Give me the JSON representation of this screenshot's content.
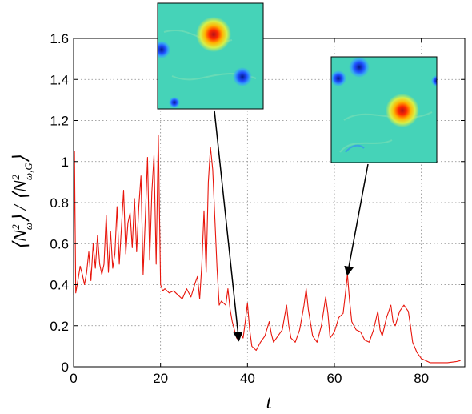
{
  "chart_data": {
    "type": "line",
    "title": "",
    "xlabel": "t",
    "ylabel": "⟨N²_ω⟩ / ⟨N²_ω,G⟩",
    "ylabel_parts": {
      "open": "⟨",
      "n1": "N",
      "sup1": "2",
      "sub1": "ω",
      "close1": "⟩",
      "slash": " / ",
      "open2": "⟨",
      "n2": "N",
      "sup2": "2",
      "sub2": "ω,G",
      "close2": "⟩"
    },
    "xlim": [
      0,
      90
    ],
    "ylim": [
      0,
      1.6
    ],
    "x_ticks": [
      0,
      20,
      40,
      60,
      80
    ],
    "y_ticks": [
      0,
      0.2,
      0.4,
      0.6,
      0.8,
      1,
      1.2,
      1.4,
      1.6
    ],
    "y_tick_labels": [
      "0",
      "0.2",
      "0.4",
      "0.6",
      "0.8",
      "1",
      "1.2",
      "1.4",
      "1.6"
    ],
    "grid": true,
    "series": [
      {
        "color": "#e8160c",
        "points": [
          [
            0.0,
            0.35
          ],
          [
            0.2,
            1.05
          ],
          [
            0.5,
            0.36
          ],
          [
            1.0,
            0.42
          ],
          [
            1.5,
            0.49
          ],
          [
            2.0,
            0.45
          ],
          [
            2.5,
            0.4
          ],
          [
            3.0,
            0.46
          ],
          [
            3.5,
            0.56
          ],
          [
            4.0,
            0.42
          ],
          [
            4.5,
            0.6
          ],
          [
            5.0,
            0.48
          ],
          [
            5.5,
            0.64
          ],
          [
            6.0,
            0.5
          ],
          [
            6.5,
            0.45
          ],
          [
            7.0,
            0.5
          ],
          [
            7.5,
            0.74
          ],
          [
            8.0,
            0.46
          ],
          [
            8.5,
            0.66
          ],
          [
            9.0,
            0.48
          ],
          [
            9.5,
            0.55
          ],
          [
            10.0,
            0.78
          ],
          [
            10.5,
            0.5
          ],
          [
            11.0,
            0.68
          ],
          [
            11.5,
            0.86
          ],
          [
            12.0,
            0.55
          ],
          [
            12.5,
            0.7
          ],
          [
            13.0,
            0.75
          ],
          [
            13.5,
            0.58
          ],
          [
            14.0,
            0.82
          ],
          [
            14.5,
            0.56
          ],
          [
            15.0,
            0.78
          ],
          [
            15.5,
            0.93
          ],
          [
            16.0,
            0.45
          ],
          [
            16.5,
            0.72
          ],
          [
            17.0,
            1.02
          ],
          [
            17.5,
            0.52
          ],
          [
            18.0,
            0.85
          ],
          [
            18.5,
            1.03
          ],
          [
            19.0,
            0.5
          ],
          [
            19.5,
            1.13
          ],
          [
            20.0,
            0.4
          ],
          [
            20.5,
            0.37
          ],
          [
            21.0,
            0.38
          ],
          [
            22.0,
            0.36
          ],
          [
            23.0,
            0.37
          ],
          [
            24.0,
            0.35
          ],
          [
            25.0,
            0.33
          ],
          [
            26.0,
            0.38
          ],
          [
            27.0,
            0.34
          ],
          [
            28.0,
            0.41
          ],
          [
            28.5,
            0.44
          ],
          [
            29.0,
            0.33
          ],
          [
            29.5,
            0.5
          ],
          [
            30.0,
            0.76
          ],
          [
            30.5,
            0.46
          ],
          [
            31.0,
            0.9
          ],
          [
            31.5,
            1.07
          ],
          [
            32.0,
            0.96
          ],
          [
            32.5,
            0.72
          ],
          [
            33.0,
            0.48
          ],
          [
            33.5,
            0.3
          ],
          [
            34.0,
            0.32
          ],
          [
            35.0,
            0.3
          ],
          [
            35.5,
            0.38
          ],
          [
            36.0,
            0.28
          ],
          [
            36.5,
            0.22
          ],
          [
            37.0,
            0.18
          ],
          [
            37.5,
            0.14
          ],
          [
            38.0,
            0.13
          ],
          [
            38.5,
            0.16
          ],
          [
            39.0,
            0.14
          ],
          [
            39.5,
            0.22
          ],
          [
            40.0,
            0.31
          ],
          [
            40.5,
            0.18
          ],
          [
            41.0,
            0.1
          ],
          [
            41.5,
            0.09
          ],
          [
            42.0,
            0.08
          ],
          [
            43.0,
            0.12
          ],
          [
            44.0,
            0.15
          ],
          [
            45.0,
            0.22
          ],
          [
            45.5,
            0.16
          ],
          [
            46.0,
            0.12
          ],
          [
            47.0,
            0.15
          ],
          [
            48.0,
            0.18
          ],
          [
            49.0,
            0.3
          ],
          [
            49.5,
            0.2
          ],
          [
            50.0,
            0.14
          ],
          [
            51.0,
            0.12
          ],
          [
            52.0,
            0.18
          ],
          [
            53.0,
            0.3
          ],
          [
            53.5,
            0.38
          ],
          [
            54.0,
            0.28
          ],
          [
            55.0,
            0.15
          ],
          [
            56.0,
            0.12
          ],
          [
            57.0,
            0.2
          ],
          [
            58.0,
            0.34
          ],
          [
            58.5,
            0.26
          ],
          [
            59.0,
            0.14
          ],
          [
            60.0,
            0.17
          ],
          [
            61.0,
            0.24
          ],
          [
            62.0,
            0.26
          ],
          [
            62.5,
            0.35
          ],
          [
            63.0,
            0.45
          ],
          [
            63.5,
            0.32
          ],
          [
            64.0,
            0.22
          ],
          [
            65.0,
            0.18
          ],
          [
            66.0,
            0.17
          ],
          [
            67.0,
            0.13
          ],
          [
            68.0,
            0.12
          ],
          [
            69.0,
            0.18
          ],
          [
            70.0,
            0.27
          ],
          [
            70.5,
            0.18
          ],
          [
            71.0,
            0.15
          ],
          [
            72.0,
            0.24
          ],
          [
            73.0,
            0.3
          ],
          [
            73.5,
            0.22
          ],
          [
            74.0,
            0.2
          ],
          [
            75.0,
            0.27
          ],
          [
            76.0,
            0.3
          ],
          [
            77.0,
            0.27
          ],
          [
            77.5,
            0.2
          ],
          [
            78.0,
            0.12
          ],
          [
            79.0,
            0.07
          ],
          [
            80.0,
            0.04
          ],
          [
            82.0,
            0.02
          ],
          [
            84.0,
            0.02
          ],
          [
            86.0,
            0.02
          ],
          [
            88.0,
            0.025
          ],
          [
            89.0,
            0.03
          ]
        ]
      }
    ],
    "annotations": [
      {
        "type": "arrow",
        "label": "inset-1",
        "x": 38,
        "y": 0.13
      },
      {
        "type": "arrow",
        "label": "inset-2",
        "x": 63,
        "y": 0.45
      }
    ],
    "colors": {
      "field_background": "#45d3b8",
      "peak_center": "#b5101a",
      "trough_center": "#0a2fd0"
    }
  }
}
